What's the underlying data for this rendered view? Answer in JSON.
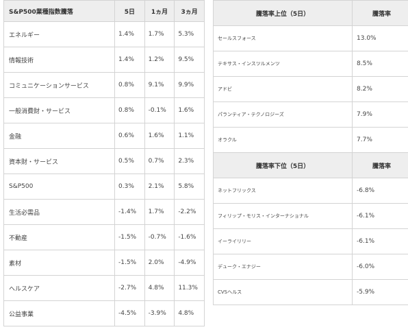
{
  "sector_table": {
    "headers": [
      "S&P500業種指数騰落",
      "5日",
      "1ヵ月",
      "3ヵ月"
    ],
    "rows": [
      [
        "エネルギー",
        "1.4%",
        "1.7%",
        "5.3%"
      ],
      [
        "情報技術",
        "1.4%",
        "1.2%",
        "9.5%"
      ],
      [
        "コミュニケーションサービス",
        "0.8%",
        "9.1%",
        "9.9%"
      ],
      [
        "一般消費財・サービス",
        "0.8%",
        "-0.1%",
        "1.6%"
      ],
      [
        "金融",
        "0.6%",
        "1.6%",
        "1.1%"
      ],
      [
        "資本財・サービス",
        "0.5%",
        "0.7%",
        "2.3%"
      ],
      [
        "S&P500",
        "0.3%",
        "2.1%",
        "5.8%"
      ],
      [
        "生活必需品",
        "-1.4%",
        "1.7%",
        "-2.2%"
      ],
      [
        "不動産",
        "-1.5%",
        "-0.7%",
        "-1.6%"
      ],
      [
        "素材",
        "-1.5%",
        "2.0%",
        "-4.9%"
      ],
      [
        "ヘルスケア",
        "-2.7%",
        "4.8%",
        "11.3%"
      ],
      [
        "公益事業",
        "-4.5%",
        "-3.9%",
        "4.8%"
      ]
    ]
  },
  "top_table": {
    "headers": [
      "騰落率上位（5日）",
      "騰落率"
    ],
    "rows": [
      [
        "セールスフォース",
        "13.0%"
      ],
      [
        "テキサス・インスツルメンツ",
        "8.5%"
      ],
      [
        "アドビ",
        "8.2%"
      ],
      [
        "パランティア・テクノロジーズ",
        "7.9%"
      ],
      [
        "オラクル",
        "7.7%"
      ]
    ]
  },
  "bottom_table": {
    "headers": [
      "騰落率下位（5日）",
      "騰落率"
    ],
    "rows": [
      [
        "ネットフリックス",
        "-6.8%"
      ],
      [
        "フィリップ・モリス・インターナショナル",
        "-6.1%"
      ],
      [
        "イーライリリー",
        "-6.1%"
      ],
      [
        "デューク・エナジー",
        "-6.0%"
      ],
      [
        "CVSヘルス",
        "-5.9%"
      ]
    ]
  }
}
